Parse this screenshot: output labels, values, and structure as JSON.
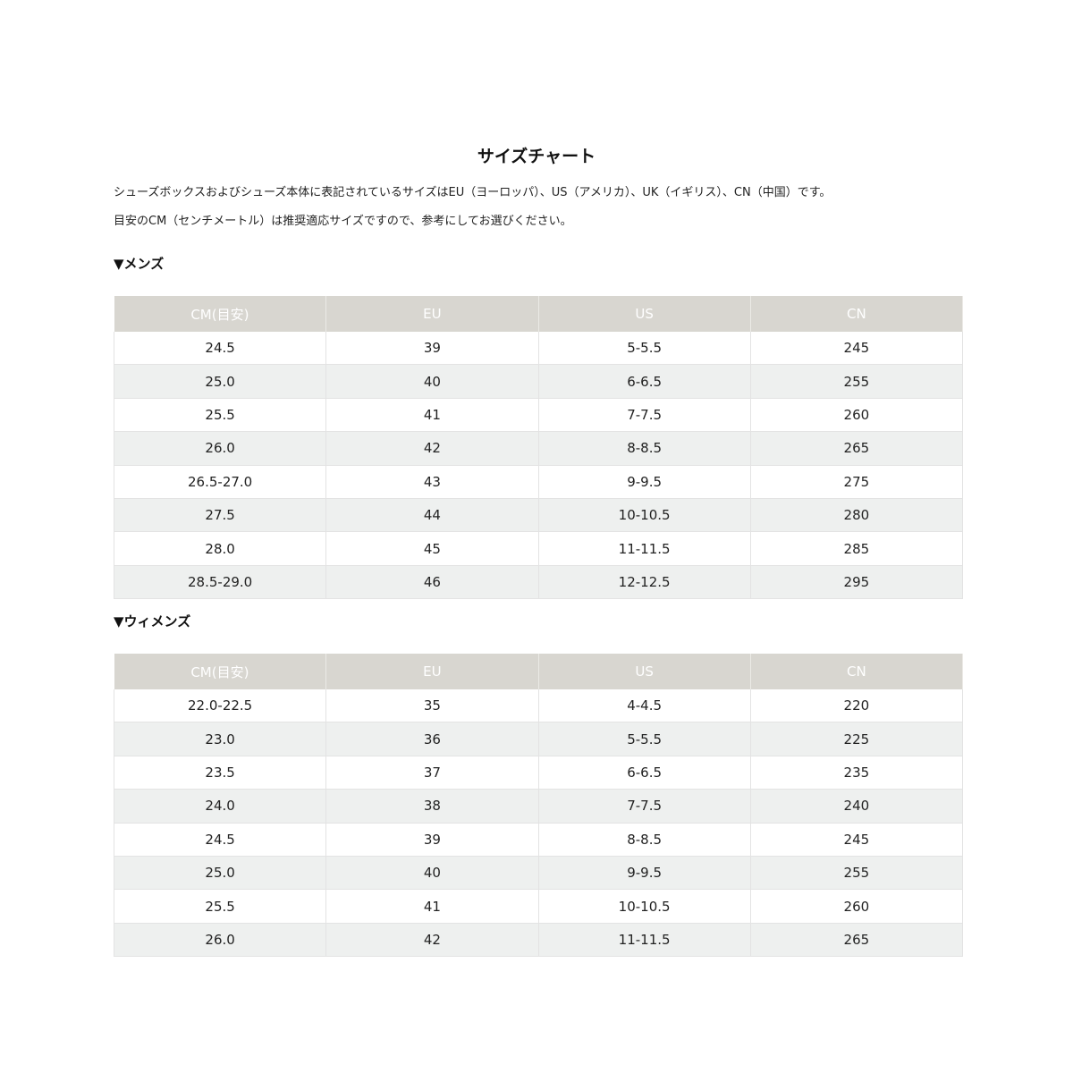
{
  "title": "サイズチャート",
  "intro": [
    "シューズボックスおよびシューズ本体に表記されているサイズはEU（ヨーロッパ）、US（アメリカ）、UK（イギリス）、CN（中国）です。",
    "目安のCM（センチメートル）は推奨適応サイズですので、参考にしてお選びください。"
  ],
  "colors": {
    "header_bg": "#d8d6d0",
    "header_text": "#ffffff",
    "row_alt": "#eef0ef"
  },
  "mens": {
    "heading": "▼メンズ",
    "columns": [
      "CM(目安)",
      "EU",
      "US",
      "CN"
    ],
    "rows": [
      [
        "24.5",
        "39",
        "5-5.5",
        "245"
      ],
      [
        "25.0",
        "40",
        "6-6.5",
        "255"
      ],
      [
        "25.5",
        "41",
        "7-7.5",
        "260"
      ],
      [
        "26.0",
        "42",
        "8-8.5",
        "265"
      ],
      [
        "26.5-27.0",
        "43",
        "9-9.5",
        "275"
      ],
      [
        "27.5",
        "44",
        "10-10.5",
        "280"
      ],
      [
        "28.0",
        "45",
        "11-11.5",
        "285"
      ],
      [
        "28.5-29.0",
        "46",
        "12-12.5",
        "295"
      ]
    ]
  },
  "womens": {
    "heading": "▼ウィメンズ",
    "columns": [
      "CM(目安)",
      "EU",
      "US",
      "CN"
    ],
    "rows": [
      [
        "22.0-22.5",
        "35",
        "4-4.5",
        "220"
      ],
      [
        "23.0",
        "36",
        "5-5.5",
        "225"
      ],
      [
        "23.5",
        "37",
        "6-6.5",
        "235"
      ],
      [
        "24.0",
        "38",
        "7-7.5",
        "240"
      ],
      [
        "24.5",
        "39",
        "8-8.5",
        "245"
      ],
      [
        "25.0",
        "40",
        "9-9.5",
        "255"
      ],
      [
        "25.5",
        "41",
        "10-10.5",
        "260"
      ],
      [
        "26.0",
        "42",
        "11-11.5",
        "265"
      ]
    ]
  }
}
